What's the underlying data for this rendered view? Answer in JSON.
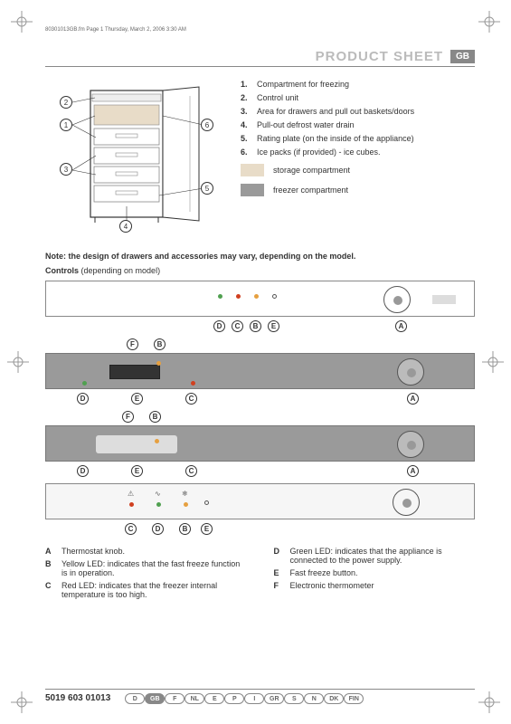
{
  "header_meta": "80301013GB.fm  Page 1  Thursday, March 2, 2006  3:30 AM",
  "title": "PRODUCT SHEET",
  "region_badge": "GB",
  "callouts": {
    "c1": "1",
    "c2": "2",
    "c3": "3",
    "c4": "4",
    "c5": "5",
    "c6": "6"
  },
  "legend": [
    {
      "num": "1.",
      "text": "Compartment for freezing"
    },
    {
      "num": "2.",
      "text": "Control unit"
    },
    {
      "num": "3.",
      "text": "Area for drawers and pull out baskets/doors"
    },
    {
      "num": "4.",
      "text": "Pull-out defrost water drain"
    },
    {
      "num": "5.",
      "text": "Rating plate (on the inside of the appliance)"
    },
    {
      "num": "6.",
      "text": "Ice packs (if provided) - ice cubes."
    }
  ],
  "swatches": [
    {
      "color": "#e8dcc8",
      "label": "storage compartment"
    },
    {
      "color": "#9a9a9a",
      "label": "freezer compartment"
    }
  ],
  "note_bold": "Note: the design of drawers and accessories may vary, depending on the model.",
  "controls_label": "Controls",
  "controls_suffix": " (depending on model)",
  "panel_labels": {
    "A": "A",
    "B": "B",
    "C": "C",
    "D": "D",
    "E": "E",
    "F": "F"
  },
  "bottom_legend": {
    "left": [
      {
        "k": "A",
        "t": "Thermostat knob."
      },
      {
        "k": "B",
        "t": "Yellow LED: indicates that the fast freeze function is in operation."
      },
      {
        "k": "C",
        "t": "Red LED: indicates that the freezer internal temperature is too high."
      }
    ],
    "right": [
      {
        "k": "D",
        "t": "Green LED: indicates that the appliance is connected to the power supply."
      },
      {
        "k": "E",
        "t": "Fast freeze button."
      },
      {
        "k": "F",
        "t": "Electronic thermometer"
      }
    ]
  },
  "footer_code": "5019 603 01013",
  "languages": [
    "D",
    "GB",
    "F",
    "NL",
    "E",
    "P",
    "I",
    "GR",
    "S",
    "N",
    "DK",
    "FIN"
  ],
  "active_lang": "GB",
  "colors": {
    "panel_gray": "#9a9a9a",
    "led_orange": "#e6a040",
    "led_red": "#d04020",
    "led_green": "#50a050"
  }
}
